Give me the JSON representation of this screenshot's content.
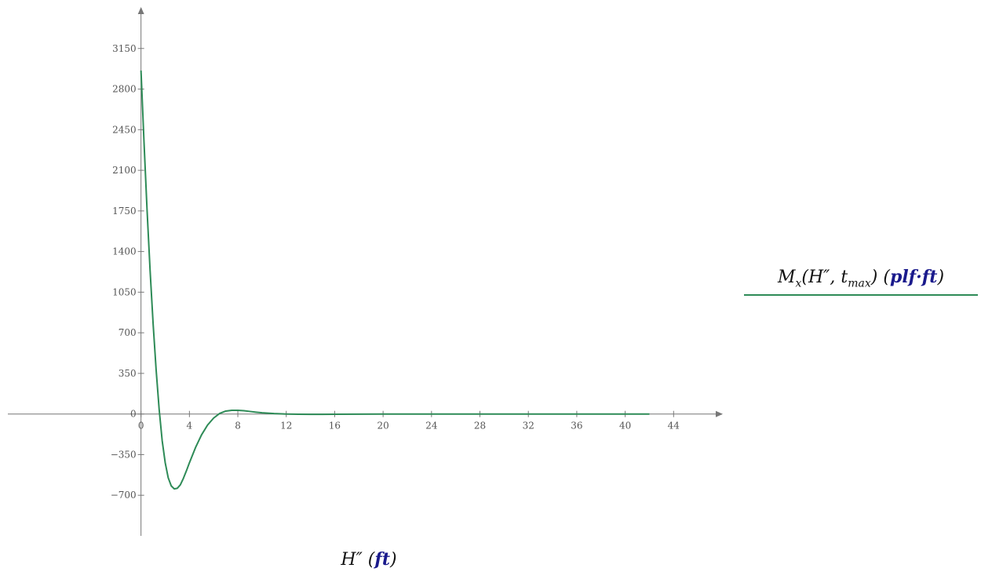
{
  "chart_data": {
    "type": "line",
    "title": "",
    "xlabel": {
      "var": "H″",
      "unit": "ft"
    },
    "ylabel": "",
    "xlim": [
      -11,
      48
    ],
    "ylim": [
      -1050,
      3500
    ],
    "x_ticks": [
      0,
      4,
      8,
      12,
      16,
      20,
      24,
      28,
      32,
      36,
      40,
      44
    ],
    "y_ticks": [
      -700,
      -350,
      0,
      350,
      700,
      1050,
      1400,
      1750,
      2100,
      2450,
      2800,
      3150
    ],
    "y_tick_labels": [
      "−700",
      "−350",
      "0",
      "350",
      "700",
      "1050",
      "1400",
      "1750",
      "2100",
      "2450",
      "2800",
      "3150"
    ],
    "grid": false,
    "series": [
      {
        "name": "Mx(H″, tmax) (plf·ft)",
        "color": "#2e8b57",
        "x": [
          0,
          0.25,
          0.5,
          0.75,
          1,
          1.25,
          1.5,
          1.75,
          2,
          2.25,
          2.5,
          2.75,
          3,
          3.25,
          3.5,
          3.75,
          4,
          4.5,
          5,
          5.5,
          6,
          6.5,
          7,
          7.5,
          8,
          8.5,
          9,
          9.5,
          10,
          11,
          12,
          13,
          14,
          15,
          16,
          18,
          20,
          24,
          28,
          32,
          36,
          40,
          42
        ],
        "y": [
          2960,
          2340,
          1760,
          1240,
          780,
          380,
          40,
          -230,
          -420,
          -550,
          -620,
          -645,
          -640,
          -610,
          -555,
          -490,
          -420,
          -290,
          -180,
          -95,
          -35,
          5,
          25,
          32,
          32,
          28,
          22,
          16,
          11,
          4,
          0,
          -2,
          -3,
          -3,
          -2,
          -1,
          0,
          0,
          0,
          0,
          0,
          0,
          0
        ]
      }
    ]
  },
  "legend": {
    "func": "M",
    "func_sub": "x",
    "args_a": "(H″, t",
    "args_sub": "max",
    "args_b": ")",
    "unit": "plf·ft"
  }
}
